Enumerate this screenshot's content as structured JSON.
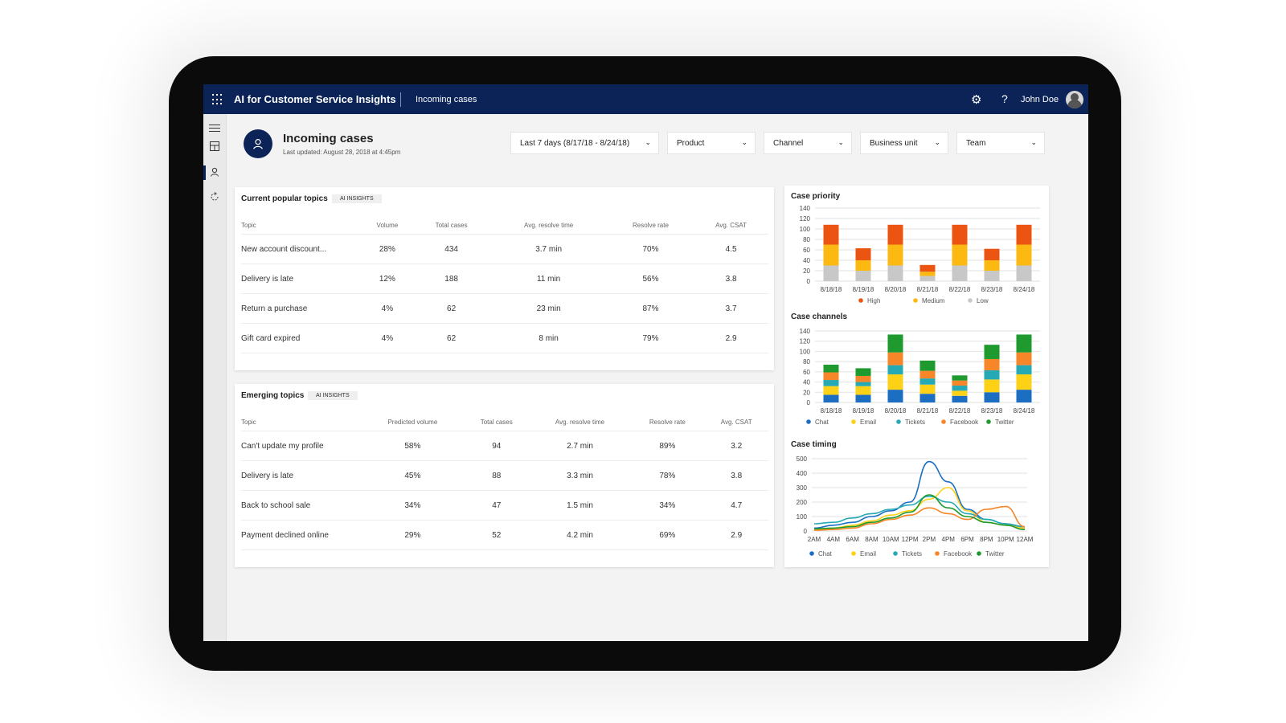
{
  "header": {
    "app_title": "AI for Customer Service Insights",
    "breadcrumb": "Incoming cases",
    "user_name": "John Doe",
    "icons": {
      "waffle": "app-launcher-icon",
      "settings": "gear-icon",
      "help": "help-icon"
    }
  },
  "sidenav": {
    "items": [
      {
        "name": "menu",
        "icon": "hamburger-icon"
      },
      {
        "name": "dashboard",
        "icon": "dashboard-icon"
      },
      {
        "name": "incoming-cases",
        "icon": "person-icon",
        "active": true
      },
      {
        "name": "refresh",
        "icon": "refresh-icon"
      }
    ]
  },
  "page": {
    "title": "Incoming cases",
    "last_updated": "Last updated:  August 28, 2018 at 4:45pm"
  },
  "filters": [
    {
      "label": "Last 7 days (8/17/18 - 8/24/18)"
    },
    {
      "label": "Product"
    },
    {
      "label": "Channel"
    },
    {
      "label": "Business unit"
    },
    {
      "label": "Team"
    }
  ],
  "popular_topics": {
    "title": "Current popular topics",
    "badge": "AI INSIGHTS",
    "columns": [
      "Topic",
      "Volume",
      "Total cases",
      "Avg. resolve time",
      "Resolve rate",
      "Avg. CSAT"
    ],
    "rows": [
      [
        "New account discount...",
        "28%",
        "434",
        "3.7 min",
        "70%",
        "4.5"
      ],
      [
        "Delivery is late",
        "12%",
        "188",
        "11 min",
        "56%",
        "3.8"
      ],
      [
        "Return a purchase",
        "4%",
        "62",
        "23 min",
        "87%",
        "3.7"
      ],
      [
        "Gift card expired",
        "4%",
        "62",
        "8 min",
        "79%",
        "2.9"
      ]
    ]
  },
  "emerging_topics": {
    "title": "Emerging topics",
    "badge": "AI INSIGHTS",
    "columns": [
      "Topic",
      "Predicted volume",
      "Total cases",
      "Avg. resolve time",
      "Resolve rate",
      "Avg. CSAT"
    ],
    "rows": [
      [
        "Can't update my profile",
        "58%",
        "94",
        "2.7 min",
        "89%",
        "3.2"
      ],
      [
        "Delivery is late",
        "45%",
        "88",
        "3.3 min",
        "78%",
        "3.8"
      ],
      [
        "Back to school sale",
        "34%",
        "47",
        "1.5 min",
        "34%",
        "4.7"
      ],
      [
        "Payment declined online",
        "29%",
        "52",
        "4.2 min",
        "69%",
        "2.9"
      ]
    ]
  },
  "chart_data": [
    {
      "type": "bar",
      "stacked": true,
      "title": "Case priority",
      "categories": [
        "8/18/18",
        "8/19/18",
        "8/20/18",
        "8/21/18",
        "8/22/18",
        "8/23/18",
        "8/24/18"
      ],
      "ylim": [
        0,
        140
      ],
      "yticks": [
        0,
        20,
        40,
        60,
        80,
        100,
        120,
        140
      ],
      "grid": true,
      "legend": "bottom",
      "series": [
        {
          "name": "Low",
          "color": "#c8c8c8",
          "values": [
            30,
            20,
            30,
            10,
            30,
            20,
            30
          ]
        },
        {
          "name": "Medium",
          "color": "#fcb912",
          "values": [
            40,
            20,
            40,
            8,
            40,
            20,
            40
          ]
        },
        {
          "name": "High",
          "color": "#ec5411",
          "values": [
            38,
            23,
            38,
            13,
            38,
            22,
            38
          ]
        }
      ],
      "legend_order": [
        "High",
        "Medium",
        "Low"
      ]
    },
    {
      "type": "bar",
      "stacked": true,
      "title": "Case channels",
      "categories": [
        "8/18/18",
        "8/19/18",
        "8/20/18",
        "8/21/18",
        "8/22/18",
        "8/23/18",
        "8/24/18"
      ],
      "ylim": [
        0,
        140
      ],
      "yticks": [
        0,
        20,
        40,
        60,
        80,
        100,
        120,
        140
      ],
      "grid": true,
      "legend": "bottom",
      "series": [
        {
          "name": "Chat",
          "color": "#1c6ec2",
          "values": [
            15,
            15,
            25,
            17,
            13,
            20,
            25
          ]
        },
        {
          "name": "Email",
          "color": "#fcd116",
          "values": [
            17,
            17,
            30,
            18,
            10,
            25,
            30
          ]
        },
        {
          "name": "Tickets",
          "color": "#25a9b5",
          "values": [
            12,
            8,
            18,
            12,
            10,
            18,
            18
          ]
        },
        {
          "name": "Facebook",
          "color": "#f68628",
          "values": [
            15,
            12,
            25,
            15,
            10,
            22,
            25
          ]
        },
        {
          "name": "Twitter",
          "color": "#1e9a2e",
          "values": [
            15,
            15,
            35,
            20,
            10,
            28,
            35
          ]
        }
      ]
    },
    {
      "type": "line",
      "title": "Case timing",
      "x": [
        "2AM",
        "4AM",
        "6AM",
        "8AM",
        "10AM",
        "12PM",
        "2PM",
        "4PM",
        "6PM",
        "8PM",
        "10PM",
        "12AM"
      ],
      "ylim": [
        0,
        500
      ],
      "yticks": [
        0,
        100,
        200,
        300,
        400,
        500
      ],
      "grid": true,
      "legend": "bottom",
      "series": [
        {
          "name": "Chat",
          "color": "#1c6ec2",
          "values": [
            20,
            40,
            60,
            100,
            140,
            200,
            480,
            340,
            150,
            80,
            50,
            20
          ]
        },
        {
          "name": "Email",
          "color": "#fcd116",
          "values": [
            10,
            20,
            40,
            70,
            110,
            140,
            220,
            300,
            140,
            60,
            40,
            20
          ]
        },
        {
          "name": "Tickets",
          "color": "#25a9b5",
          "values": [
            50,
            60,
            90,
            120,
            150,
            180,
            240,
            200,
            120,
            80,
            50,
            30
          ]
        },
        {
          "name": "Facebook",
          "color": "#f68628",
          "values": [
            5,
            10,
            20,
            50,
            80,
            110,
            160,
            120,
            80,
            150,
            170,
            30
          ]
        },
        {
          "name": "Twitter",
          "color": "#1e9a2e",
          "values": [
            15,
            20,
            30,
            60,
            90,
            130,
            250,
            160,
            100,
            60,
            40,
            10
          ]
        }
      ]
    }
  ]
}
